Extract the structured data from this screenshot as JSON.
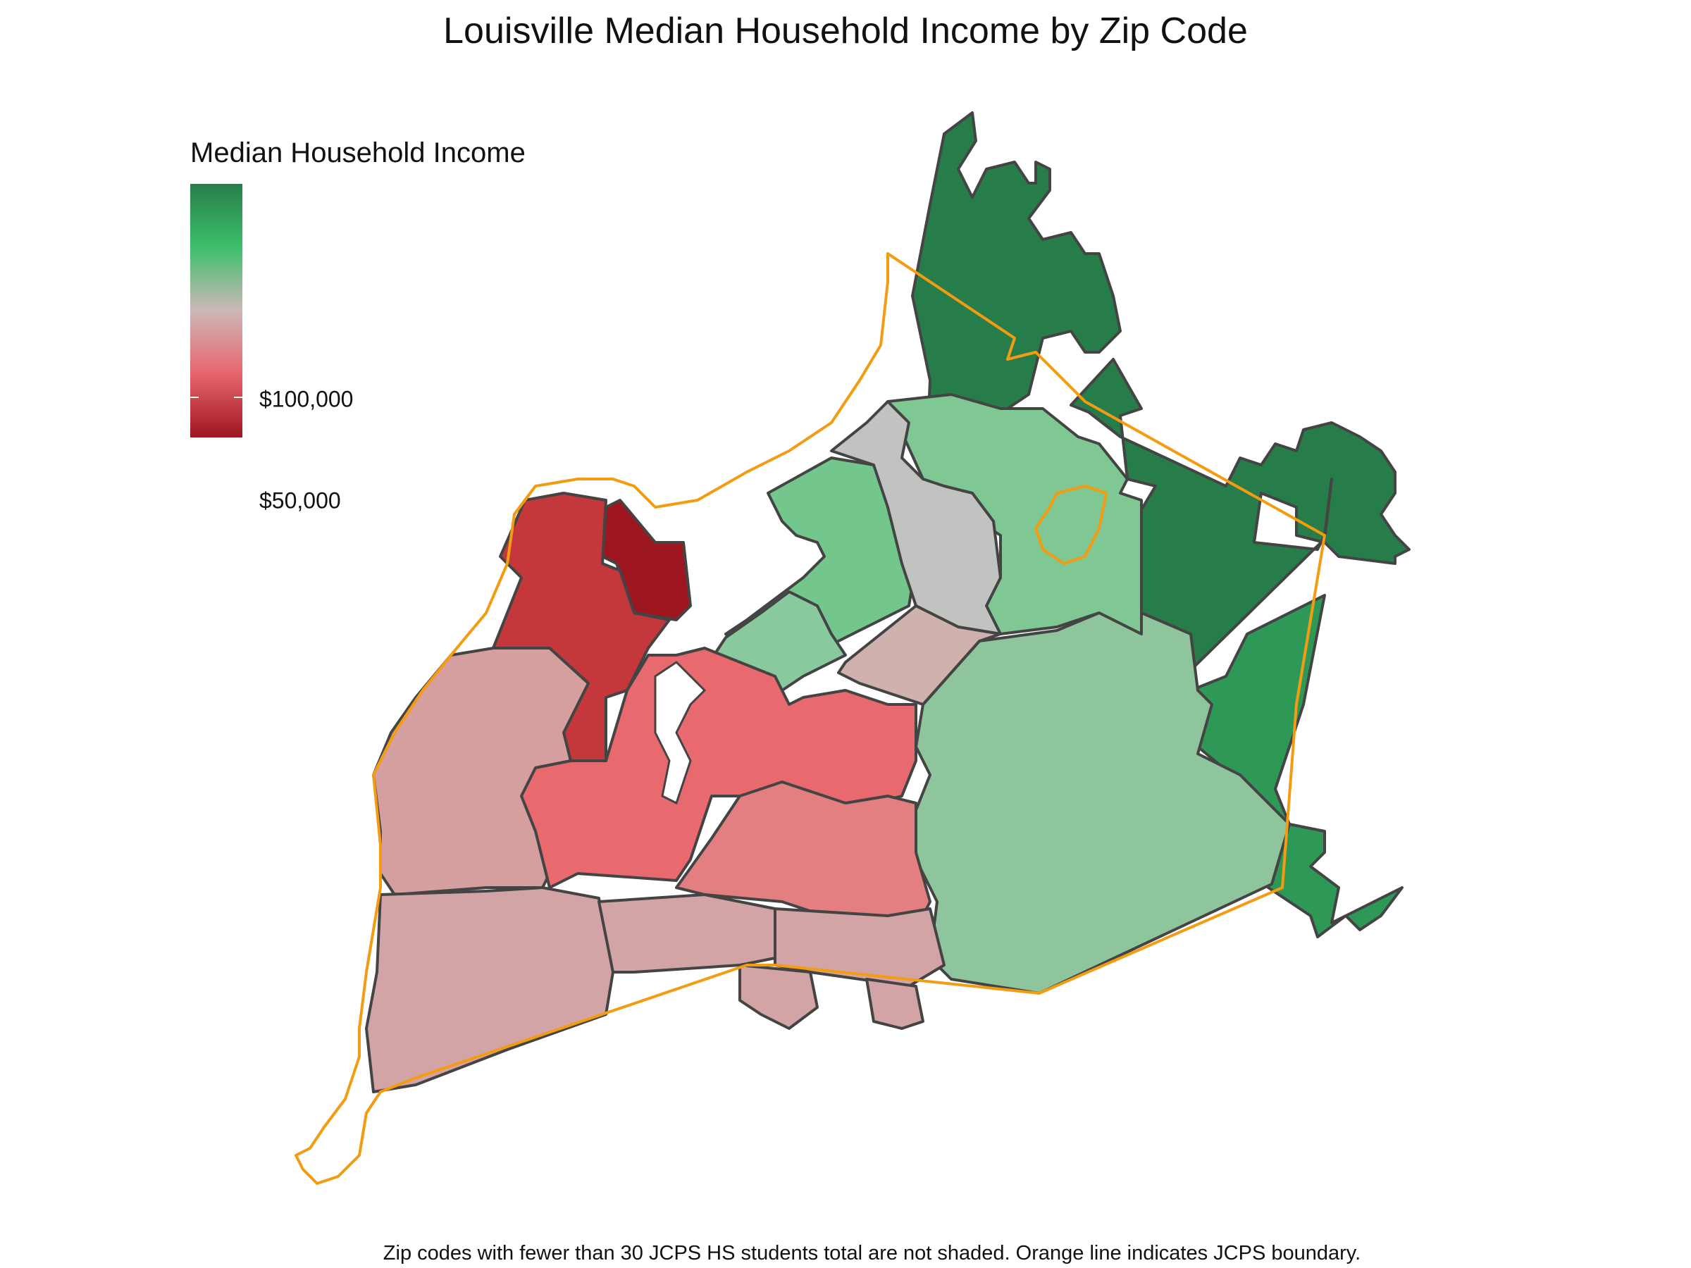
{
  "title": "Louisville Median Household Income by Zip Code",
  "legend": {
    "title": "Median Household Income",
    "labels": [
      {
        "text": "$100,000",
        "value": 100000
      },
      {
        "text": "$50,000",
        "value": 50000
      }
    ],
    "colors": [
      "#9e1620",
      "#e8646b",
      "#cdb8b8",
      "#3cbf6a",
      "#277d49"
    ]
  },
  "boundary_color": "#f39c12",
  "footnote": "Zip codes with fewer than 30 JCPS HS students total are not shaded. Orange line indicates JCPS boundary.",
  "regions": [
    {
      "name": "northeast",
      "color": "#277d49"
    },
    {
      "name": "east",
      "color": "#277d49"
    },
    {
      "name": "southeast",
      "color": "#2e9957"
    },
    {
      "name": "east-central",
      "color": "#8fc59d"
    },
    {
      "name": "north-central-green",
      "color": "#7fc894"
    },
    {
      "name": "central-green",
      "color": "#74c78c"
    },
    {
      "name": "central-grey",
      "color": "#c0c3bf"
    },
    {
      "name": "downtown",
      "color": "#9e1620"
    },
    {
      "name": "west-end",
      "color": "#c4373b"
    },
    {
      "name": "southwest",
      "color": "#d59fa0"
    },
    {
      "name": "south",
      "color": "#e8696e"
    },
    {
      "name": "far-south",
      "color": "#d3a4a5"
    }
  ]
}
